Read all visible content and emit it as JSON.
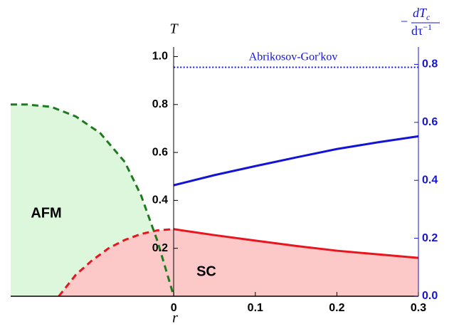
{
  "chart_data": {
    "type": "line",
    "xlabel": "r",
    "ylabel": "T",
    "y2label": {
      "prefix": "−",
      "numerator": "dT",
      "numerator_subscript": "c",
      "denominator": "dτ",
      "denominator_superscript": "−1"
    },
    "annotations": [
      "AFM",
      "SC",
      "Abrikosov-Gor'kov"
    ],
    "xlim": [
      -0.2,
      0.3
    ],
    "xticks": [
      0,
      0.1,
      0.2,
      0.3
    ],
    "ylim": [
      0,
      1.04
    ],
    "yticks": [
      0.2,
      0.4,
      0.6,
      0.8,
      {
        "value": 1,
        "label": "1.0"
      }
    ],
    "y2lim": [
      0,
      0.86
    ],
    "y2ticks": [
      {
        "value": 0,
        "label": "0.0"
      },
      0.2,
      0.4,
      0.6,
      0.8
    ],
    "y2color": "#1414d8",
    "grid": false,
    "series": [
      {
        "color": "#1f7a1f",
        "fill": "#dcf7dc",
        "style": "dashed",
        "x": [
          -0.2,
          -0.18,
          -0.15,
          -0.12,
          -0.09,
          -0.06,
          -0.04,
          -0.02,
          0
        ],
        "values": [
          0.8,
          0.8,
          0.79,
          0.75,
          0.68,
          0.56,
          0.42,
          0.23,
          0
        ]
      },
      {
        "color": "#e8141e",
        "fill": "#fdc8c8",
        "style": "dashed",
        "x": [
          -0.141,
          -0.12,
          -0.1,
          -0.08,
          -0.06,
          -0.04,
          -0.02,
          0
        ],
        "values": [
          0,
          0.09,
          0.15,
          0.2,
          0.235,
          0.26,
          0.275,
          0.28
        ]
      },
      {
        "color": "#e8141e",
        "fill": "#fdc8c8",
        "style": "solid",
        "x": [
          0,
          0.05,
          0.1,
          0.15,
          0.2,
          0.25,
          0.3
        ],
        "values": [
          0.28,
          0.255,
          0.232,
          0.21,
          0.19,
          0.175,
          0.16
        ]
      },
      {
        "color": "#1414d8",
        "style": "solid",
        "axis": "y2",
        "x": [
          0,
          0.05,
          0.1,
          0.15,
          0.2,
          0.25,
          0.3
        ],
        "values": [
          0.383,
          0.418,
          0.449,
          0.479,
          0.508,
          0.531,
          0.552
        ]
      },
      {
        "color": "#1414d8",
        "style": "dotted",
        "axis": "y2",
        "x": [
          0,
          0.3
        ],
        "values": [
          0.79,
          0.79
        ]
      }
    ]
  }
}
